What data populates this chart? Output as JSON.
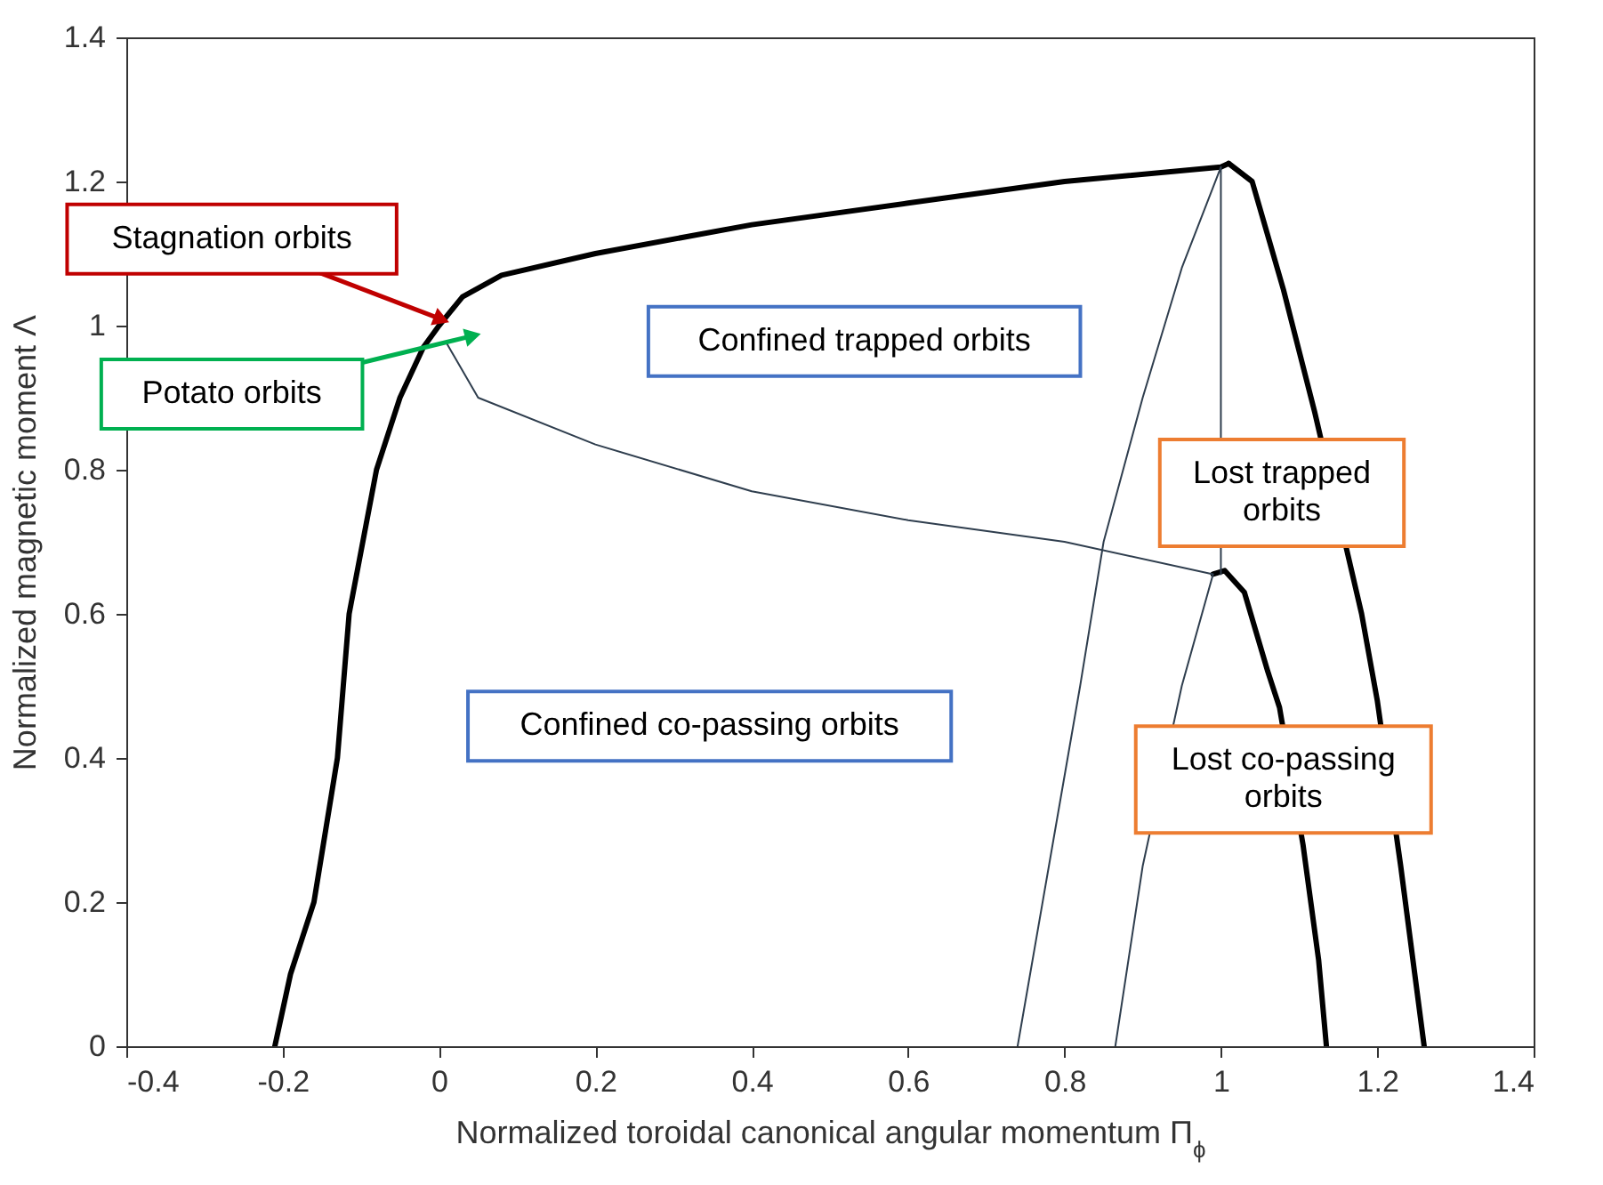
{
  "chart_data": {
    "type": "line",
    "xlabel": "Normalized toroidal canonical angular momentum Π$_{ϕ}$",
    "ylabel": "Normalized magnetic moment Λ",
    "xlim": [
      -0.4,
      1.4
    ],
    "xticks": [
      {
        "value": -0.4,
        "label": "-0.4"
      },
      {
        "value": -0.2,
        "label": "-0.2"
      },
      {
        "value": 0,
        "label": "0"
      },
      0.2,
      0.4,
      0.6,
      0.8,
      {
        "value": 1,
        "label": "1"
      },
      1.2,
      1.4
    ],
    "ylim": [
      0,
      1.4
    ],
    "yticks": [
      {
        "value": 0,
        "label": "0"
      },
      0.2,
      0.4,
      0.6,
      0.8,
      {
        "value": 1,
        "label": "1"
      },
      1.2,
      1.4
    ],
    "grid": false,
    "line_style": "solid",
    "marker": "none",
    "series": [
      {
        "color": "#000000",
        "x": [
          -0.21,
          -0.19,
          -0.16,
          -0.13,
          -0.115,
          -0.08,
          -0.05,
          -0.02,
          0,
          0.03,
          0.08,
          0.2,
          0.4,
          0.6,
          0.8,
          1.0,
          1.01
        ],
        "values": [
          0,
          0.1,
          0.2,
          0.4,
          0.6,
          0.8,
          0.9,
          0.97,
          1.0,
          1.04,
          1.07,
          1.1,
          1.14,
          1.17,
          1.2,
          1.22,
          1.225
        ]
      },
      {
        "color": "#000000",
        "x": [
          1.01,
          1.04,
          1.08,
          1.12,
          1.18,
          1.2,
          1.23,
          1.26
        ],
        "values": [
          1.225,
          1.2,
          1.05,
          0.88,
          0.6,
          0.48,
          0.25,
          0
        ]
      },
      {
        "color": "#000000",
        "x": [
          0.99,
          1.005,
          1.03,
          1.06,
          1.075,
          1.105,
          1.11,
          1.125,
          1.135
        ],
        "values": [
          0.655,
          0.66,
          0.63,
          0.52,
          0.47,
          0.28,
          0.24,
          0.12,
          0
        ]
      },
      {
        "color": "#2f3e4e",
        "x": [
          0.01,
          0.05,
          0.2,
          0.4,
          0.6,
          0.8,
          0.99,
          0.95,
          0.9,
          0.865
        ],
        "values": [
          0.975,
          0.9,
          0.835,
          0.77,
          0.73,
          0.7,
          0.655,
          0.5,
          0.25,
          0
        ]
      },
      {
        "color": "#2f3e4e",
        "x": [
          0.74,
          0.78,
          0.82,
          0.85,
          0.9,
          0.95,
          1.0,
          1.0
        ],
        "values": [
          0,
          0.25,
          0.5,
          0.7,
          0.9,
          1.08,
          1.22,
          0.655
        ]
      }
    ],
    "annotations": [
      {
        "text": "Stagnation orbits",
        "x": 0,
        "y": 1.01
      },
      {
        "text": "Potato orbits",
        "x": 0.04,
        "y": 0.985
      },
      "Confined trapped orbits",
      "Lost trapped\norbits",
      "Confined co-passing orbits",
      "Lost co-passing\norbits"
    ]
  }
}
